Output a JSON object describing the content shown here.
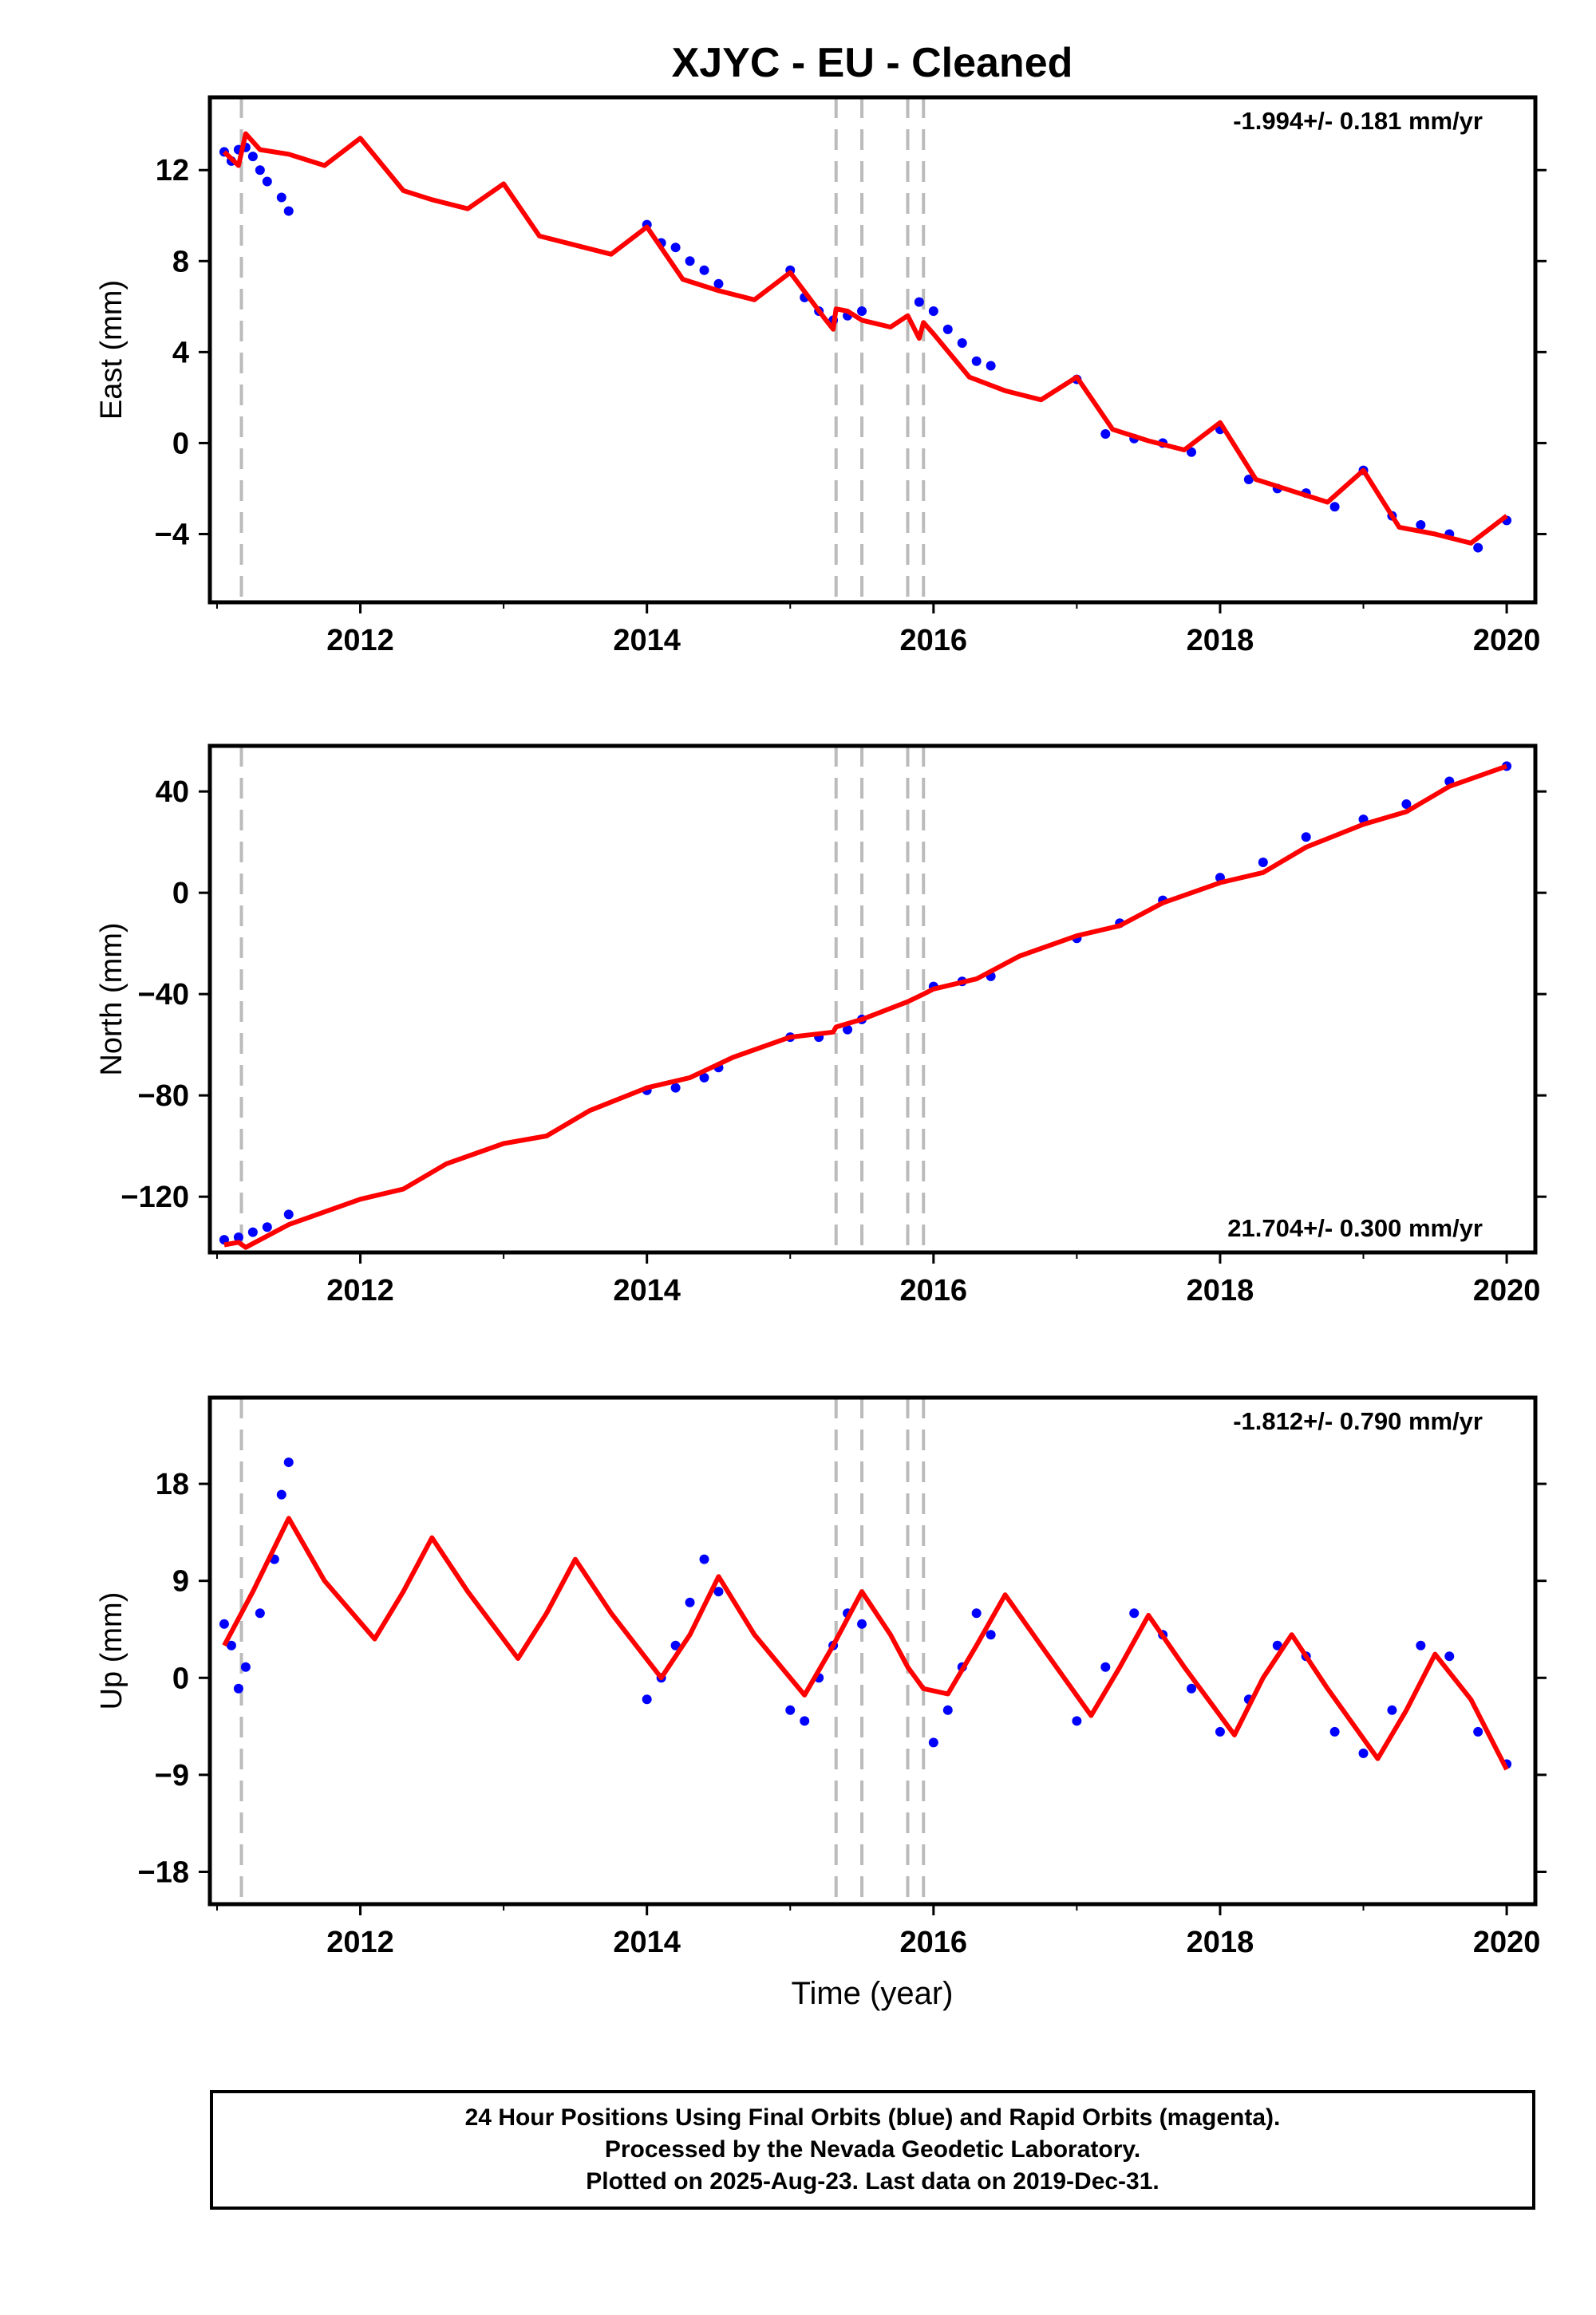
{
  "title": "XJYC  - EU - Cleaned",
  "xlabel": "Time (year)",
  "colors": {
    "final_orbits": "#0000ff",
    "model": "#ff0000",
    "offsets": "#bbbbbb",
    "frame": "#000000"
  },
  "footer": {
    "line1": "24 Hour Positions Using Final Orbits (blue) and Rapid Orbits (magenta).",
    "line2": "Processed by the Nevada Geodetic Laboratory.",
    "line3": "Plotted on 2025-Aug-23. Last data on 2019-Dec-31."
  },
  "chart_data": [
    {
      "type": "scatter",
      "component": "East",
      "ylabel": "East (mm)",
      "rate_label": "-1.994+/- 0.181 mm/yr",
      "rate_placement": "top-right",
      "xlim": [
        2010.95,
        2020.2
      ],
      "ylim": [
        -7,
        15.2
      ],
      "xticks": [
        2012,
        2014,
        2016,
        2018,
        2020
      ],
      "yticks": [
        -4,
        0,
        4,
        8,
        12
      ],
      "offset_lines": [
        2011.17,
        2015.32,
        2015.5,
        2015.82,
        2015.93
      ],
      "series": [
        {
          "role": "points",
          "x": [
            2011.05,
            2011.1,
            2011.15,
            2011.2,
            2011.25,
            2011.3,
            2011.35,
            2011.45,
            2011.5,
            2014.0,
            2014.1,
            2014.2,
            2014.3,
            2014.4,
            2014.5,
            2015.0,
            2015.1,
            2015.2,
            2015.3,
            2015.4,
            2015.5,
            2015.9,
            2016.0,
            2016.1,
            2016.2,
            2016.3,
            2016.4,
            2017.0,
            2017.2,
            2017.4,
            2017.6,
            2017.8,
            2018.0,
            2018.2,
            2018.4,
            2018.6,
            2018.8,
            2019.0,
            2019.2,
            2019.4,
            2019.6,
            2019.8,
            2020.0
          ],
          "y": [
            12.8,
            12.4,
            12.9,
            13.0,
            12.6,
            12.0,
            11.5,
            10.8,
            10.2,
            9.6,
            8.8,
            8.6,
            8.0,
            7.6,
            7.0,
            7.6,
            6.4,
            5.8,
            5.4,
            5.6,
            5.8,
            6.2,
            5.8,
            5.0,
            4.4,
            3.6,
            3.4,
            2.8,
            0.4,
            0.2,
            0.0,
            -0.4,
            0.6,
            -1.6,
            -2.0,
            -2.2,
            -2.8,
            -1.2,
            -3.2,
            -3.6,
            -4.0,
            -4.6,
            -3.4
          ]
        },
        {
          "role": "model",
          "x": [
            2011.05,
            2011.15,
            2011.2,
            2011.3,
            2011.5,
            2011.75,
            2012.0,
            2012.3,
            2012.5,
            2012.75,
            2013.0,
            2013.25,
            2013.5,
            2013.75,
            2014.0,
            2014.25,
            2014.5,
            2014.75,
            2015.0,
            2015.25,
            2015.3,
            2015.32,
            2015.4,
            2015.5,
            2015.7,
            2015.82,
            2015.9,
            2015.93,
            2016.0,
            2016.25,
            2016.5,
            2016.75,
            2017.0,
            2017.25,
            2017.5,
            2017.75,
            2018.0,
            2018.25,
            2018.5,
            2018.75,
            2019.0,
            2019.25,
            2019.5,
            2019.75,
            2020.0
          ],
          "y": [
            12.8,
            12.2,
            13.6,
            12.9,
            12.7,
            12.2,
            13.4,
            11.1,
            10.7,
            10.3,
            11.4,
            9.1,
            8.7,
            8.3,
            9.5,
            7.2,
            6.7,
            6.3,
            7.5,
            5.4,
            5.0,
            5.9,
            5.8,
            5.4,
            5.1,
            5.6,
            4.6,
            5.3,
            4.8,
            2.9,
            2.3,
            1.9,
            2.9,
            0.6,
            0.1,
            -0.3,
            0.9,
            -1.6,
            -2.1,
            -2.6,
            -1.2,
            -3.7,
            -4.0,
            -4.4,
            -3.2
          ]
        }
      ]
    },
    {
      "type": "scatter",
      "component": "North",
      "ylabel": "North (mm)",
      "rate_label": "21.704+/- 0.300 mm/yr",
      "rate_placement": "bottom-right",
      "xlim": [
        2010.95,
        2020.2
      ],
      "ylim": [
        -142,
        58
      ],
      "xticks": [
        2012,
        2014,
        2016,
        2018,
        2020
      ],
      "yticks": [
        -120,
        -80,
        -40,
        0,
        40
      ],
      "offset_lines": [
        2011.17,
        2015.32,
        2015.5,
        2015.82,
        2015.93
      ],
      "series": [
        {
          "role": "points",
          "x": [
            2011.05,
            2011.15,
            2011.25,
            2011.35,
            2011.5,
            2014.0,
            2014.2,
            2014.4,
            2014.5,
            2015.0,
            2015.2,
            2015.4,
            2015.5,
            2016.0,
            2016.2,
            2016.4,
            2017.0,
            2017.3,
            2017.6,
            2018.0,
            2018.3,
            2018.6,
            2019.0,
            2019.3,
            2019.6,
            2020.0
          ],
          "y": [
            -137,
            -136,
            -134,
            -132,
            -127,
            -78,
            -77,
            -73,
            -69,
            -57,
            -57,
            -54,
            -50,
            -37,
            -35,
            -33,
            -18,
            -12,
            -3,
            6,
            12,
            22,
            29,
            35,
            44,
            50
          ]
        },
        {
          "role": "model",
          "x": [
            2011.05,
            2011.15,
            2011.2,
            2011.5,
            2012.0,
            2012.3,
            2012.6,
            2013.0,
            2013.3,
            2013.6,
            2014.0,
            2014.3,
            2014.6,
            2015.0,
            2015.3,
            2015.32,
            2015.5,
            2015.82,
            2015.93,
            2016.0,
            2016.3,
            2016.6,
            2017.0,
            2017.3,
            2017.6,
            2018.0,
            2018.3,
            2018.6,
            2019.0,
            2019.3,
            2019.6,
            2020.0
          ],
          "y": [
            -139,
            -138,
            -140,
            -131,
            -121,
            -117,
            -107,
            -99,
            -96,
            -86,
            -77,
            -73,
            -65,
            -57,
            -55,
            -53,
            -50,
            -43,
            -40,
            -38,
            -34,
            -25,
            -17,
            -13,
            -4,
            4,
            8,
            18,
            27,
            32,
            42,
            50
          ]
        }
      ]
    },
    {
      "type": "scatter",
      "component": "Up",
      "ylabel": "Up (mm)",
      "rate_label": "-1.812+/- 0.790 mm/yr",
      "rate_placement": "top-right",
      "xlim": [
        2010.95,
        2020.2
      ],
      "ylim": [
        -21,
        26
      ],
      "xticks": [
        2012,
        2014,
        2016,
        2018,
        2020
      ],
      "yticks": [
        -18,
        -9,
        0,
        9,
        18
      ],
      "offset_lines": [
        2011.17,
        2015.32,
        2015.5,
        2015.82,
        2015.93
      ],
      "series": [
        {
          "role": "points",
          "x": [
            2011.05,
            2011.1,
            2011.15,
            2011.2,
            2011.3,
            2011.4,
            2011.45,
            2011.5,
            2014.0,
            2014.1,
            2014.2,
            2014.3,
            2014.4,
            2014.5,
            2015.0,
            2015.1,
            2015.2,
            2015.3,
            2015.4,
            2015.5,
            2016.0,
            2016.1,
            2016.2,
            2016.3,
            2016.4,
            2017.0,
            2017.2,
            2017.4,
            2017.6,
            2017.8,
            2018.0,
            2018.2,
            2018.4,
            2018.6,
            2018.8,
            2019.0,
            2019.2,
            2019.4,
            2019.6,
            2019.8,
            2020.0
          ],
          "y": [
            5,
            3,
            -1,
            1,
            6,
            11,
            17,
            20,
            -2,
            0,
            3,
            7,
            11,
            8,
            -3,
            -4,
            0,
            3,
            6,
            5,
            -6,
            -3,
            1,
            6,
            4,
            -4,
            1,
            6,
            4,
            -1,
            -5,
            -2,
            3,
            2,
            -5,
            -7,
            -3,
            3,
            2,
            -5,
            -8
          ]
        },
        {
          "role": "model",
          "x": [
            2011.05,
            2011.25,
            2011.5,
            2011.75,
            2012.1,
            2012.3,
            2012.5,
            2012.75,
            2013.1,
            2013.3,
            2013.5,
            2013.75,
            2014.1,
            2014.3,
            2014.5,
            2014.75,
            2015.1,
            2015.3,
            2015.5,
            2015.7,
            2015.82,
            2015.93,
            2016.1,
            2016.3,
            2016.5,
            2016.75,
            2017.1,
            2017.3,
            2017.5,
            2017.75,
            2018.1,
            2018.3,
            2018.5,
            2018.75,
            2019.1,
            2019.3,
            2019.5,
            2019.75,
            2020.0
          ],
          "y": [
            3,
            8,
            14.8,
            9,
            3.6,
            8,
            13,
            8,
            1.8,
            6,
            11,
            6,
            0,
            4,
            9.4,
            4,
            -1.6,
            3,
            8,
            4,
            1,
            -1,
            -1.5,
            3,
            7.7,
            3,
            -3.5,
            1,
            5.8,
            1,
            -5.3,
            0,
            4,
            -1,
            -7.5,
            -3,
            2.2,
            -2,
            -8.5
          ]
        }
      ]
    }
  ]
}
